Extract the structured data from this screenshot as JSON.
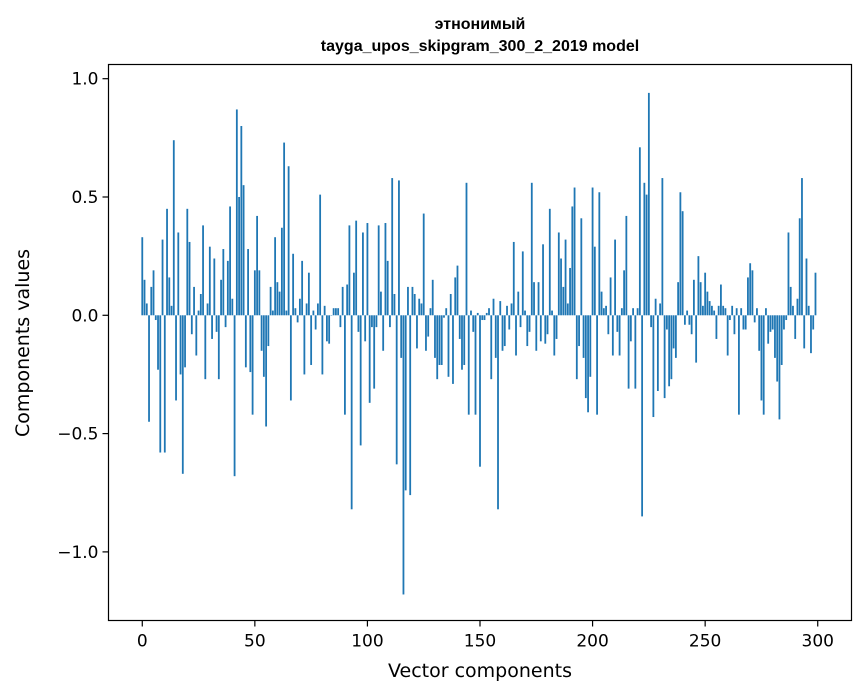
{
  "chart_data": {
    "type": "bar",
    "title": "этнонимый",
    "subtitle": "tayga_upos_skipgram_300_2_2019 model",
    "xlabel": "Vector components",
    "ylabel": "Components values",
    "xlim": [
      -15,
      315
    ],
    "ylim": [
      -1.29,
      1.06
    ],
    "xticks": [
      0,
      50,
      100,
      150,
      200,
      250,
      300
    ],
    "xtick_labels": [
      "0",
      "50",
      "100",
      "150",
      "200",
      "250",
      "300"
    ],
    "yticks": [
      -1.0,
      -0.5,
      0.0,
      0.5,
      1.0
    ],
    "ytick_labels": [
      "−1.0",
      "−0.5",
      "0.0",
      "0.5",
      "1.0"
    ],
    "bar_color": "#1f77b4",
    "grid": false,
    "values": [
      0.33,
      0.15,
      0.05,
      -0.45,
      0.12,
      0.19,
      -0.02,
      -0.23,
      -0.58,
      0.32,
      -0.58,
      0.45,
      0.16,
      0.04,
      0.74,
      -0.36,
      0.35,
      -0.25,
      -0.67,
      -0.22,
      0.45,
      0.31,
      -0.08,
      0.12,
      -0.17,
      0.02,
      0.09,
      0.38,
      -0.27,
      0.05,
      0.29,
      -0.1,
      0.24,
      -0.07,
      -0.27,
      0.15,
      0.28,
      -0.05,
      0.23,
      0.46,
      0.07,
      -0.68,
      0.87,
      0.5,
      0.8,
      0.55,
      -0.22,
      0.28,
      -0.24,
      -0.42,
      0.19,
      0.42,
      0.19,
      -0.15,
      -0.26,
      -0.47,
      -0.13,
      0.12,
      0.02,
      0.33,
      0.14,
      0.1,
      0.37,
      0.73,
      0.02,
      0.63,
      -0.36,
      0.26,
      0.03,
      -0.03,
      0.07,
      0.23,
      -0.25,
      0.05,
      0.18,
      -0.21,
      0.02,
      -0.06,
      0.05,
      0.51,
      -0.25,
      0.04,
      -0.11,
      -0.12,
      0.0,
      0.03,
      0.03,
      0.03,
      -0.05,
      0.12,
      -0.42,
      0.13,
      0.38,
      -0.82,
      0.18,
      0.4,
      -0.07,
      -0.55,
      0.35,
      -0.11,
      0.39,
      -0.37,
      -0.05,
      -0.31,
      -0.05,
      0.38,
      0.1,
      -0.15,
      0.39,
      0.23,
      -0.05,
      0.58,
      0.09,
      -0.63,
      0.57,
      -0.18,
      -1.18,
      -0.74,
      0.12,
      -0.76,
      0.12,
      0.09,
      -0.14,
      0.07,
      0.05,
      0.43,
      -0.15,
      -0.09,
      0.03,
      0.15,
      -0.18,
      -0.27,
      -0.21,
      -0.21,
      -0.01,
      0.03,
      -0.26,
      0.09,
      -0.29,
      0.16,
      0.21,
      -0.1,
      -0.23,
      -0.21,
      0.56,
      -0.42,
      0.02,
      -0.07,
      -0.42,
      0.01,
      -0.64,
      -0.02,
      -0.02,
      0.01,
      0.03,
      -0.27,
      0.07,
      -0.18,
      -0.82,
      0.06,
      -0.15,
      -0.13,
      0.04,
      -0.06,
      0.05,
      0.31,
      -0.17,
      0.1,
      -0.05,
      0.27,
      0.02,
      -0.13,
      -0.07,
      0.56,
      0.14,
      -0.15,
      0.14,
      -0.11,
      0.3,
      -0.12,
      -0.08,
      0.45,
      0.02,
      -0.17,
      -0.1,
      0.35,
      0.24,
      0.12,
      0.32,
      0.05,
      0.2,
      0.46,
      0.54,
      -0.27,
      -0.13,
      0.41,
      -0.18,
      -0.35,
      -0.41,
      -0.26,
      0.54,
      0.29,
      -0.42,
      0.52,
      0.1,
      0.03,
      0.04,
      -0.08,
      0.16,
      -0.17,
      0.32,
      -0.07,
      -0.17,
      0.03,
      0.19,
      0.42,
      -0.31,
      -0.11,
      0.03,
      -0.31,
      0.03,
      0.71,
      -0.85,
      0.56,
      0.51,
      0.94,
      -0.05,
      -0.43,
      0.07,
      -0.32,
      0.05,
      0.58,
      -0.35,
      -0.06,
      -0.3,
      -0.27,
      -0.14,
      -0.18,
      0.14,
      0.52,
      0.44,
      -0.04,
      0.02,
      -0.04,
      -0.08,
      0.15,
      -0.2,
      0.25,
      0.14,
      0.04,
      0.18,
      0.1,
      0.06,
      0.04,
      0.02,
      -0.1,
      0.04,
      0.13,
      0.04,
      0.03,
      -0.17,
      -0.02,
      0.04,
      -0.08,
      0.03,
      -0.42,
      0.03,
      -0.06,
      -0.06,
      0.16,
      0.22,
      0.19,
      -0.03,
      0.03,
      -0.15,
      -0.36,
      -0.42,
      0.03,
      -0.12,
      -0.07,
      -0.06,
      -0.18,
      -0.28,
      -0.44,
      -0.21,
      -0.06,
      -0.02,
      0.35,
      0.12,
      0.04,
      -0.1,
      0.07,
      0.41,
      0.58,
      -0.14,
      0.24,
      0.04,
      -0.16,
      -0.06,
      0.18
    ]
  }
}
